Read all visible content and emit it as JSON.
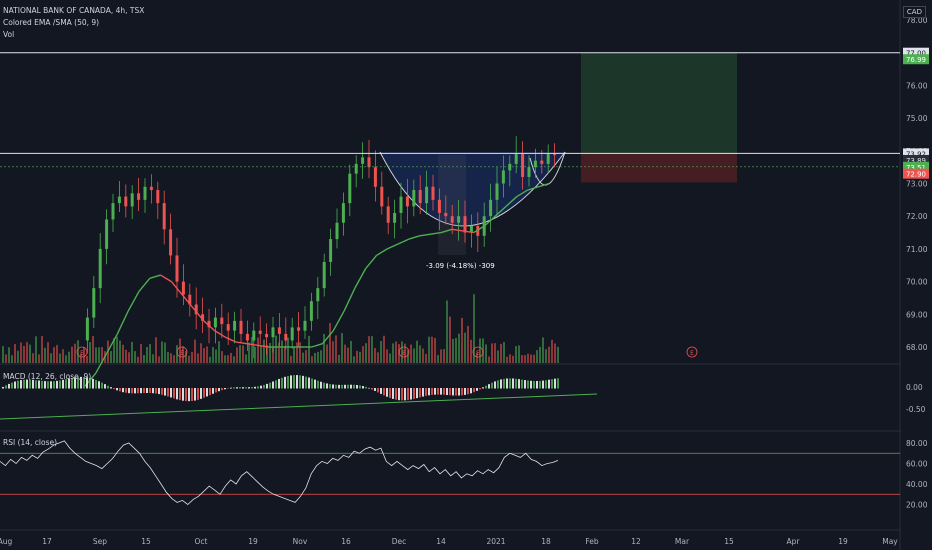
{
  "header": {
    "symbol_line": "NATIONAL BANK OF CANADA, 4h, TSX",
    "indicator_ema": "Colored EMA /SMA (50, 9)",
    "indicator_vol": "Vol",
    "currency": "CAD",
    "macd_label": "MACD (12, 26, close, 9)",
    "rsi_label": "RSI (14, close)"
  },
  "colors": {
    "background": "#131722",
    "up": "#26a69a",
    "up_bright": "#4caf50",
    "down": "#ef5350",
    "grid": "#1e222d",
    "axis_text": "#b2b5be",
    "white": "#e0e3eb",
    "profit_zone": "#1e3b2a",
    "loss_zone": "#4a1f24"
  },
  "chart_data": [
    {
      "type": "candlestick",
      "panel": "price",
      "ylim": [
        67.5,
        78.5
      ],
      "yticks": [
        "78.00",
        "77.00",
        "76.00",
        "75.00",
        "74.00",
        "73.00",
        "72.00",
        "71.00",
        "70.00",
        "69.00",
        "68.00"
      ],
      "xticks": [
        "Aug",
        "17",
        "Sep",
        "15",
        "Oct",
        "19",
        "Nov",
        "16",
        "Dec",
        "14",
        "2021",
        "18",
        "Feb",
        "12",
        "Mar",
        "15",
        "Apr",
        "19",
        "May"
      ],
      "price_tags": [
        {
          "label": "77.00",
          "value": 77.0,
          "style": "white"
        },
        {
          "label": "76.99",
          "value": 76.8,
          "style": "green"
        },
        {
          "label": "73.92",
          "value": 73.92,
          "style": "white"
        },
        {
          "label": "73.89",
          "value": 73.72,
          "style": "dark"
        },
        {
          "label": "73.51",
          "value": 73.51,
          "style": "green"
        },
        {
          "label": "72.90",
          "value": 73.3,
          "style": "red"
        }
      ],
      "horizontal_lines": [
        77.0,
        73.92
      ],
      "position_tool": {
        "entry": 73.92,
        "target": 77.0,
        "stop": 73.4
      },
      "measure_annotation": "-3.09 (-4.18%) -309",
      "earnings_marker": "E",
      "close_series": [
        68.2,
        68.9,
        69.8,
        71.0,
        71.9,
        72.4,
        72.6,
        72.3,
        72.7,
        72.5,
        72.9,
        72.8,
        72.4,
        71.6,
        70.8,
        70.0,
        69.6,
        69.3,
        69.0,
        68.8,
        68.6,
        68.9,
        68.7,
        68.5,
        68.8,
        68.4,
        68.2,
        68.5,
        68.4,
        68.3,
        68.6,
        68.4,
        68.2,
        68.6,
        68.5,
        68.8,
        69.4,
        69.8,
        70.6,
        71.3,
        71.8,
        72.4,
        73.3,
        73.6,
        73.8,
        73.5,
        72.9,
        72.3,
        71.8,
        72.1,
        72.6,
        72.3,
        72.8,
        72.4,
        72.9,
        72.5,
        72.1,
        72.0,
        71.8,
        72.0,
        71.5,
        71.7,
        71.4,
        72.0,
        72.5,
        73.0,
        73.4,
        73.6,
        73.9,
        73.2,
        73.5,
        73.7,
        73.6,
        73.9,
        73.89
      ],
      "ema_series": [
        66.8,
        67.2,
        67.8,
        68.4,
        69.1,
        69.7,
        70.1,
        70.2,
        70.0,
        69.6,
        69.2,
        68.8,
        68.5,
        68.3,
        68.15,
        68.1,
        68.05,
        68.0,
        68.0,
        68.0,
        68.0,
        68.0,
        68.1,
        68.5,
        69.1,
        69.8,
        70.4,
        70.8,
        71.0,
        71.15,
        71.3,
        71.4,
        71.45,
        71.5,
        71.6,
        71.55,
        71.5,
        71.7,
        72.0,
        72.3,
        72.6,
        72.8,
        72.9,
        73.0
      ]
    },
    {
      "type": "bar",
      "panel": "macd",
      "yticks": [
        "0.00",
        "-0.50"
      ]
    },
    {
      "type": "line",
      "panel": "rsi",
      "ylim": [
        15,
        85
      ],
      "yticks": [
        "80.00",
        "60.00",
        "40.00",
        "20.00"
      ],
      "bands": [
        70,
        30
      ],
      "values": [
        62,
        58,
        64,
        60,
        66,
        63,
        68,
        65,
        71,
        74,
        78,
        80,
        82,
        75,
        70,
        66,
        62,
        60,
        58,
        55,
        60,
        65,
        72,
        78,
        80,
        75,
        70,
        62,
        56,
        48,
        40,
        32,
        26,
        22,
        24,
        20,
        25,
        28,
        33,
        38,
        34,
        30,
        38,
        44,
        40,
        48,
        52,
        47,
        42,
        37,
        33,
        30,
        28,
        26,
        24,
        22,
        28,
        36,
        50,
        58,
        62,
        60,
        65,
        63,
        68,
        66,
        72,
        70,
        74,
        76,
        73,
        75,
        62,
        58,
        62,
        58,
        54,
        58,
        55,
        59,
        52,
        56,
        50,
        54,
        48,
        52,
        46,
        50,
        48,
        53,
        50,
        54,
        51,
        56,
        66,
        70,
        68,
        66,
        70,
        64,
        62,
        58,
        60,
        61,
        63
      ]
    }
  ]
}
